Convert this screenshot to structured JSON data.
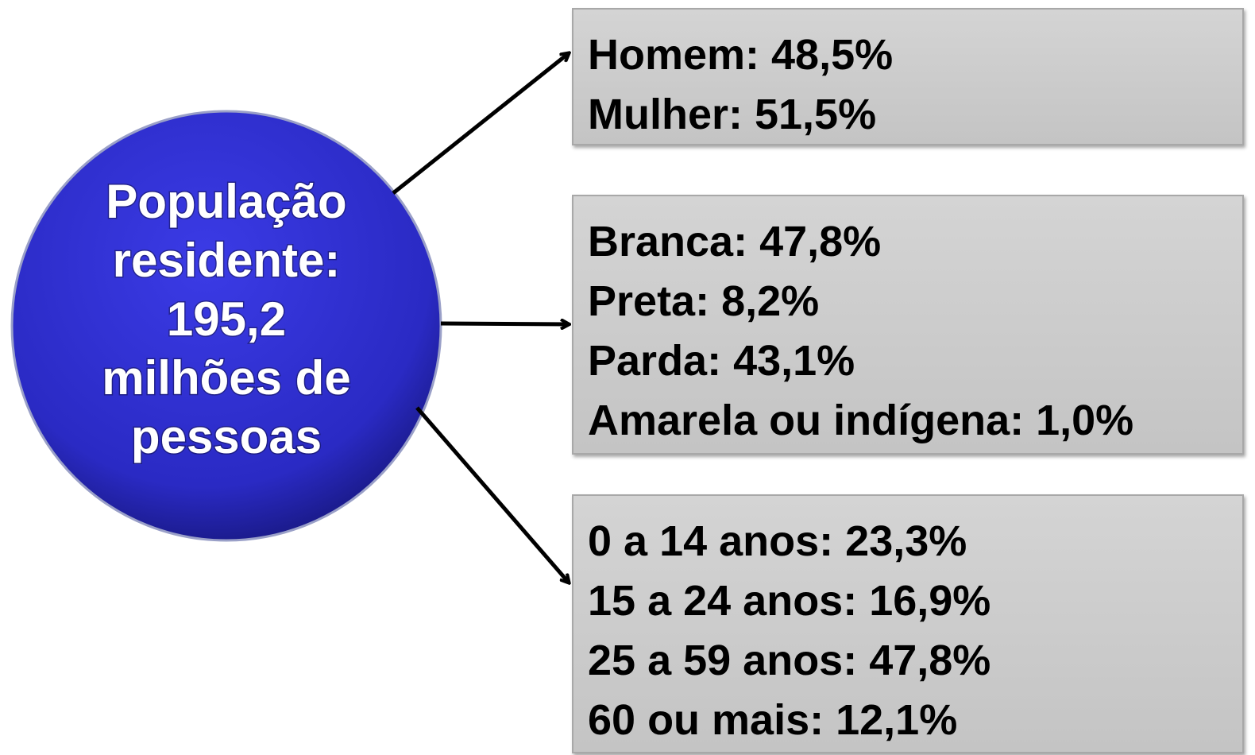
{
  "center": {
    "lines": [
      "População",
      "residente:",
      "195,2",
      "milhões de",
      "pessoas"
    ]
  },
  "boxes": [
    {
      "lines": [
        "Homem: 48,5%",
        "Mulher: 51,5%"
      ]
    },
    {
      "lines": [
        "Branca: 47,8%",
        "Preta: 8,2%",
        "Parda: 43,1%",
        "Amarela ou indígena: 1,0%"
      ]
    },
    {
      "lines": [
        "0 a 14 anos: 23,3%",
        "15 a 24 anos: 16,9%",
        "25 a 59 anos: 47,8%",
        "60 ou mais: 12,1%"
      ]
    }
  ]
}
